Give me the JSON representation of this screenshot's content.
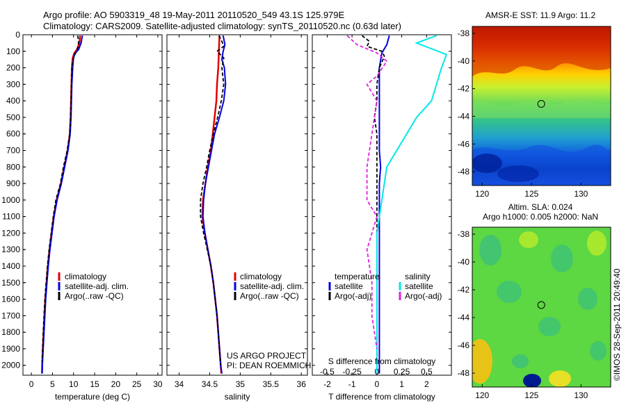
{
  "header": {
    "line1": "Argo profile: AO 5903319_48 19-May-2011 20110520_549 43.1S 125.979E",
    "line2": "Climatology: CARS2009. Satellite-adjusted climatology: synTS_20110520.nc (0.63d later)"
  },
  "colors": {
    "climatology": "#e00000",
    "satellite": "#0000e0",
    "argo": "#000000",
    "salinity_satellite": "#00e8e8",
    "salinity_argo": "#e020e0"
  },
  "chart_data": [
    {
      "type": "line",
      "xlabel": "temperature (deg C)",
      "xlim": [
        -2,
        31
      ],
      "xticks": [
        0,
        5,
        10,
        15,
        20,
        25,
        30
      ],
      "ylim": [
        2060,
        0
      ],
      "yticks": [
        0,
        100,
        200,
        300,
        400,
        500,
        600,
        700,
        800,
        900,
        1000,
        1100,
        1200,
        1300,
        1400,
        1500,
        1600,
        1700,
        1800,
        1900,
        2000
      ],
      "y_reversed": true,
      "legend": [
        "climatology",
        "satellite-adj. clim.",
        "Argo(..raw -QC)"
      ],
      "series": [
        {
          "name": "climatology",
          "points": [
            [
              11.6,
              5
            ],
            [
              11.4,
              50
            ],
            [
              10.8,
              90
            ],
            [
              10.2,
              110
            ],
            [
              9.8,
              140
            ],
            [
              9.6,
              200
            ],
            [
              9.5,
              300
            ],
            [
              9.4,
              400
            ],
            [
              9.3,
              500
            ],
            [
              9.1,
              600
            ],
            [
              8.6,
              700
            ],
            [
              7.8,
              800
            ],
            [
              7.0,
              900
            ],
            [
              6.0,
              1000
            ],
            [
              5.3,
              1100
            ],
            [
              4.8,
              1200
            ],
            [
              4.3,
              1300
            ],
            [
              3.9,
              1400
            ],
            [
              3.6,
              1500
            ],
            [
              3.3,
              1600
            ],
            [
              3.1,
              1700
            ],
            [
              2.9,
              1800
            ],
            [
              2.7,
              1900
            ],
            [
              2.55,
              2000
            ],
            [
              2.5,
              2050
            ]
          ]
        },
        {
          "name": "satellite-adj. clim.",
          "points": [
            [
              12.1,
              5
            ],
            [
              11.8,
              50
            ],
            [
              11.2,
              90
            ],
            [
              10.4,
              110
            ],
            [
              10.0,
              140
            ],
            [
              9.8,
              200
            ],
            [
              9.6,
              300
            ],
            [
              9.5,
              400
            ],
            [
              9.4,
              500
            ],
            [
              9.2,
              600
            ],
            [
              8.7,
              700
            ],
            [
              7.9,
              800
            ],
            [
              7.1,
              900
            ],
            [
              6.1,
              1000
            ],
            [
              5.4,
              1100
            ],
            [
              4.9,
              1200
            ],
            [
              4.4,
              1300
            ],
            [
              4.0,
              1400
            ],
            [
              3.7,
              1500
            ],
            [
              3.4,
              1600
            ],
            [
              3.2,
              1700
            ],
            [
              3.0,
              1800
            ],
            [
              2.8,
              1900
            ],
            [
              2.6,
              2000
            ],
            [
              2.55,
              2050
            ]
          ]
        },
        {
          "name": "Argo(..raw -QC)",
          "points": [
            [
              11.0,
              5
            ],
            [
              11.2,
              40
            ],
            [
              11.1,
              70
            ],
            [
              10.7,
              100
            ],
            [
              10.1,
              130
            ],
            [
              9.7,
              180
            ],
            [
              9.5,
              300
            ],
            [
              9.4,
              400
            ],
            [
              9.3,
              500
            ],
            [
              9.1,
              600
            ],
            [
              8.5,
              700
            ],
            [
              7.6,
              800
            ],
            [
              6.9,
              900
            ],
            [
              5.8,
              1000
            ],
            [
              5.2,
              1100
            ],
            [
              4.7,
              1200
            ],
            [
              4.2,
              1300
            ],
            [
              3.8,
              1400
            ],
            [
              3.5,
              1500
            ],
            [
              3.2,
              1600
            ],
            [
              3.0,
              1700
            ],
            [
              2.8,
              1800
            ],
            [
              2.65,
              1900
            ],
            [
              2.55,
              1980
            ]
          ]
        }
      ]
    },
    {
      "type": "line",
      "xlabel": "salinity",
      "xlim": [
        33.8,
        36.1
      ],
      "xticks": [
        34,
        34.5,
        35,
        35.5,
        36
      ],
      "ylim": [
        2060,
        0
      ],
      "y_reversed": true,
      "legend": [
        "climatology",
        "satellite-adj. clim.",
        "Argo(..raw -QC)"
      ],
      "annotation": [
        "US ARGO PROJECT",
        "PI: DEAN ROEMMICH"
      ],
      "series": [
        {
          "name": "climatology",
          "points": [
            [
              34.66,
              5
            ],
            [
              34.65,
              100
            ],
            [
              34.64,
              200
            ],
            [
              34.62,
              300
            ],
            [
              34.61,
              400
            ],
            [
              34.58,
              500
            ],
            [
              34.55,
              600
            ],
            [
              34.52,
              700
            ],
            [
              34.47,
              800
            ],
            [
              34.43,
              900
            ],
            [
              34.39,
              1000
            ],
            [
              34.38,
              1100
            ],
            [
              34.42,
              1200
            ],
            [
              34.47,
              1300
            ],
            [
              34.52,
              1400
            ],
            [
              34.56,
              1500
            ],
            [
              34.59,
              1600
            ],
            [
              34.62,
              1700
            ],
            [
              34.64,
              1800
            ],
            [
              34.66,
              1900
            ],
            [
              34.68,
              2000
            ],
            [
              34.69,
              2050
            ]
          ]
        },
        {
          "name": "satellite-adj. clim.",
          "points": [
            [
              34.72,
              5
            ],
            [
              34.75,
              60
            ],
            [
              34.72,
              100
            ],
            [
              34.7,
              150
            ],
            [
              34.74,
              200
            ],
            [
              34.76,
              300
            ],
            [
              34.73,
              400
            ],
            [
              34.66,
              500
            ],
            [
              34.58,
              600
            ],
            [
              34.53,
              700
            ],
            [
              34.48,
              800
            ],
            [
              34.43,
              900
            ],
            [
              34.4,
              1000
            ],
            [
              34.39,
              1100
            ],
            [
              34.42,
              1200
            ],
            [
              34.47,
              1300
            ],
            [
              34.52,
              1400
            ],
            [
              34.56,
              1500
            ],
            [
              34.59,
              1600
            ],
            [
              34.62,
              1700
            ],
            [
              34.64,
              1800
            ],
            [
              34.66,
              1900
            ],
            [
              34.68,
              2000
            ],
            [
              34.7,
              2050
            ]
          ]
        },
        {
          "name": "Argo(..raw -QC)",
          "points": [
            [
              34.65,
              5
            ],
            [
              34.7,
              40
            ],
            [
              34.73,
              70
            ],
            [
              34.62,
              100
            ],
            [
              34.73,
              140
            ],
            [
              34.7,
              200
            ],
            [
              34.73,
              300
            ],
            [
              34.69,
              400
            ],
            [
              34.63,
              500
            ],
            [
              34.56,
              600
            ],
            [
              34.5,
              700
            ],
            [
              34.45,
              800
            ],
            [
              34.39,
              900
            ],
            [
              34.35,
              1000
            ],
            [
              34.35,
              1100
            ],
            [
              34.4,
              1200
            ],
            [
              34.46,
              1300
            ],
            [
              34.52,
              1400
            ],
            [
              34.56,
              1500
            ],
            [
              34.59,
              1600
            ],
            [
              34.62,
              1700
            ],
            [
              34.64,
              1800
            ],
            [
              34.66,
              1900
            ],
            [
              34.68,
              2000
            ]
          ]
        }
      ]
    },
    {
      "type": "line",
      "xlabel": "T difference from climatology",
      "xlabel_top": "S difference from climatology",
      "xlim": [
        -2.6,
        3.0
      ],
      "xticks": [
        -2,
        -1,
        0,
        1,
        2
      ],
      "xticks_top": [
        -0.5,
        -0.25,
        0,
        0.25,
        0.5
      ],
      "ylim": [
        2060,
        0
      ],
      "y_reversed": true,
      "legend_temperature": {
        "header": "temperature",
        "items": [
          "satellite",
          "Argo(-adj)"
        ]
      },
      "legend_salinity": {
        "header": "salinity",
        "items": [
          "satellite",
          "Argo(-adj)"
        ]
      },
      "series": [
        {
          "name": "satellite",
          "group": "temperature",
          "points": [
            [
              0.5,
              5
            ],
            [
              0.4,
              60
            ],
            [
              0.2,
              110
            ],
            [
              0.1,
              200
            ],
            [
              0.1,
              400
            ],
            [
              0.1,
              600
            ],
            [
              0.1,
              700
            ],
            [
              0.15,
              800
            ],
            [
              0.1,
              900
            ],
            [
              0.1,
              1000
            ],
            [
              0.1,
              1200
            ],
            [
              0.1,
              1400
            ],
            [
              0.1,
              1600
            ],
            [
              0.1,
              1800
            ],
            [
              0.1,
              2000
            ],
            [
              0.1,
              2050
            ]
          ]
        },
        {
          "name": "Argo(-adj)",
          "group": "temperature",
          "points": [
            [
              -0.6,
              5
            ],
            [
              -0.3,
              40
            ],
            [
              -0.4,
              70
            ],
            [
              0.2,
              100
            ],
            [
              0.3,
              130
            ],
            [
              0.1,
              200
            ],
            [
              0.0,
              300
            ],
            [
              0.0,
              400
            ],
            [
              -0.1,
              500
            ],
            [
              0.0,
              600
            ],
            [
              0.0,
              700
            ],
            [
              0.0,
              800
            ],
            [
              0.0,
              900
            ],
            [
              0.0,
              1000
            ],
            [
              0.0,
              1100
            ],
            [
              0.0,
              1200
            ],
            [
              0.0,
              1400
            ],
            [
              0.0,
              1600
            ],
            [
              0.0,
              1800
            ],
            [
              0.0,
              1950
            ]
          ]
        },
        {
          "name": "satellite",
          "group": "salinity",
          "points": [
            [
              0.6,
              5
            ],
            [
              0.4,
              50
            ],
            [
              0.7,
              120
            ],
            [
              0.65,
              200
            ],
            [
              0.6,
              300
            ],
            [
              0.55,
              400
            ],
            [
              0.4,
              500
            ],
            [
              0.3,
              600
            ],
            [
              0.1,
              800
            ],
            [
              0.05,
              1000
            ],
            [
              0.0,
              1200
            ],
            [
              0.0,
              1400
            ],
            [
              0.0,
              1600
            ],
            [
              0.0,
              1800
            ],
            [
              0.0,
              2000
            ],
            [
              0.0,
              2050
            ]
          ]
        },
        {
          "name": "Argo(-adj)",
          "group": "salinity",
          "points": [
            [
              -0.3,
              5
            ],
            [
              -0.2,
              60
            ],
            [
              0.0,
              110
            ],
            [
              0.1,
              160
            ],
            [
              0.0,
              250
            ],
            [
              -0.1,
              300
            ],
            [
              0.0,
              400
            ],
            [
              -0.05,
              600
            ],
            [
              -0.1,
              800
            ],
            [
              -0.1,
              1000
            ],
            [
              0.0,
              1100
            ],
            [
              -0.1,
              1300
            ],
            [
              -0.05,
              1500
            ],
            [
              -0.05,
              1700
            ],
            [
              0.0,
              1900
            ]
          ]
        }
      ]
    },
    {
      "type": "heatmap",
      "title": "AMSR-E SST: 11.9 Argo: 11.2",
      "xlim": [
        119,
        133
      ],
      "xticks": [
        120,
        125,
        130
      ],
      "ylim": [
        -49,
        -37.5
      ],
      "yticks": [
        -38,
        -40,
        -42,
        -44,
        -46,
        -48
      ],
      "marker": [
        125.979,
        -43.1
      ]
    },
    {
      "type": "heatmap",
      "title": "Altim. SLA: 0.024",
      "subtitle": "Argo h1000: 0.005 h2000: NaN",
      "xlim": [
        119,
        133
      ],
      "xticks": [
        120,
        125,
        130
      ],
      "ylim": [
        -49,
        -37.5
      ],
      "yticks": [
        -38,
        -40,
        -42,
        -44,
        -46,
        -48
      ],
      "marker": [
        125.979,
        -43.1
      ]
    }
  ],
  "credit": "©IMOS 28-Sep-2011 20:49:40"
}
